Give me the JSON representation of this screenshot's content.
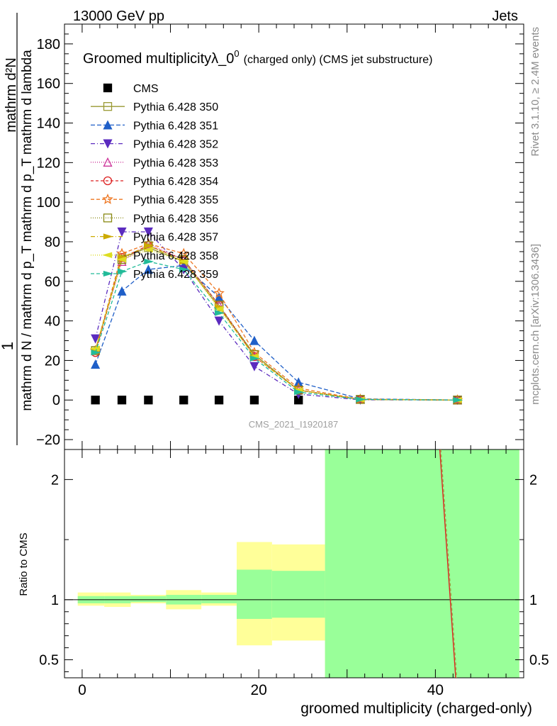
{
  "header": {
    "energy": "13000 GeV pp",
    "process": "Jets",
    "rivet": "Rivet 3.1.10, ≥ 2.4M events",
    "site": "mcplots.cern.ch [arXiv:1306.3436]",
    "analysis": "CMS_2021_I1920187"
  },
  "chart_data": [
    {
      "type": "line",
      "panel": "main",
      "title": "Groomed multiplicityλ_0",
      "title_sup": "0",
      "title_suffix": "(charged only) (CMS jet substructure)",
      "ylabel_num": "1",
      "ylabel_den": "mathrm d N / mathrm d p_T mathrm d p_T mathrm d lambda",
      "ylabel_top": "mathrm d²N",
      "xlim": [
        -2,
        50
      ],
      "ylim": [
        -25,
        190
      ],
      "yticks": [
        -20,
        0,
        20,
        40,
        60,
        80,
        100,
        120,
        140,
        160,
        180
      ],
      "x": [
        1.5,
        4.5,
        7.5,
        11.5,
        15.5,
        19.5,
        24.5,
        31.5,
        42.5
      ],
      "series": [
        {
          "name": "CMS",
          "color": "#000000",
          "marker": "square-filled",
          "dash": "none",
          "x": [
            1.5,
            4.5,
            7.5,
            11.5,
            15.5,
            19.5,
            24.5
          ],
          "values": [
            0,
            0,
            0,
            0,
            0,
            0,
            0
          ]
        },
        {
          "name": "Pythia 6.428 350",
          "color": "#999933",
          "marker": "square-open",
          "dash": "solid",
          "values": [
            25,
            72,
            77,
            70,
            47,
            23,
            5,
            0.3,
            0
          ]
        },
        {
          "name": "Pythia 6.428 351",
          "color": "#1f5fc8",
          "marker": "triangle-up-filled",
          "dash": "6,3",
          "values": [
            18,
            55,
            66,
            68,
            52,
            30,
            9,
            0.6,
            0
          ]
        },
        {
          "name": "Pythia 6.428 352",
          "color": "#5b2bbf",
          "marker": "triangle-down-filled",
          "dash": "6,3,1,3",
          "values": [
            31,
            85,
            85,
            66,
            40,
            17,
            3,
            0.1,
            0
          ]
        },
        {
          "name": "Pythia 6.428 353",
          "color": "#cc3399",
          "marker": "triangle-up-open",
          "dash": "1,2",
          "values": [
            25,
            70,
            79,
            71,
            48,
            22,
            5,
            0.3,
            0
          ]
        },
        {
          "name": "Pythia 6.428 354",
          "color": "#dd2222",
          "marker": "circle-open",
          "dash": "4,3",
          "values": [
            24,
            72,
            78,
            71,
            48,
            22,
            5,
            0.3,
            0
          ]
        },
        {
          "name": "Pythia 6.428 355",
          "color": "#ee7722",
          "marker": "star-open",
          "dash": "5,3",
          "values": [
            25,
            74,
            79,
            74,
            54,
            24,
            6,
            0.4,
            0
          ]
        },
        {
          "name": "Pythia 6.428 356",
          "color": "#888811",
          "marker": "square-open",
          "dash": "1,2",
          "values": [
            25,
            71,
            78,
            71,
            48,
            23,
            5,
            0.3,
            0
          ]
        },
        {
          "name": "Pythia 6.428 357",
          "color": "#ccaa00",
          "marker": "triangle-right-filled",
          "dash": "6,3,1,3",
          "values": [
            25,
            72,
            78,
            70,
            47,
            22,
            5,
            0.3,
            0
          ]
        },
        {
          "name": "Pythia 6.428 358",
          "color": "#dddd22",
          "marker": "triangle-left-filled",
          "dash": "1,2",
          "values": [
            26,
            71,
            76,
            70,
            46,
            22,
            5,
            0.3,
            0
          ]
        },
        {
          "name": "Pythia 6.428 359",
          "color": "#22bb99",
          "marker": "triangle-right-filled",
          "dash": "5,3",
          "values": [
            24,
            65,
            70,
            66,
            44,
            21,
            4,
            0.3,
            0
          ]
        }
      ]
    },
    {
      "type": "area",
      "panel": "ratio",
      "xlabel": "groomed multiplicity (charged-only)",
      "ylabel": "Ratio to CMS",
      "xlim": [
        -2,
        50
      ],
      "ylim": [
        0.35,
        2.25
      ],
      "yticks": [
        0.5,
        1,
        2
      ],
      "xticks": [
        0,
        20,
        40
      ],
      "band_inner_color": "#99ff99",
      "band_outer_color": "#ffff99",
      "bins": [
        {
          "lo": -0.5,
          "hi": 2.5,
          "inner": [
            0.97,
            1.03
          ],
          "outer": [
            0.95,
            1.06
          ]
        },
        {
          "lo": 2.5,
          "hi": 5.5,
          "inner": [
            0.97,
            1.03
          ],
          "outer": [
            0.94,
            1.06
          ]
        },
        {
          "lo": 5.5,
          "hi": 9.5,
          "inner": [
            0.98,
            1.03
          ],
          "outer": [
            0.97,
            1.04
          ]
        },
        {
          "lo": 9.5,
          "hi": 13.5,
          "inner": [
            0.96,
            1.04
          ],
          "outer": [
            0.92,
            1.08
          ]
        },
        {
          "lo": 13.5,
          "hi": 17.5,
          "inner": [
            0.97,
            1.04
          ],
          "outer": [
            0.95,
            1.06
          ]
        },
        {
          "lo": 17.5,
          "hi": 21.5,
          "inner": [
            0.84,
            1.25
          ],
          "outer": [
            0.62,
            1.48
          ]
        },
        {
          "lo": 21.5,
          "hi": 27.5,
          "inner": [
            0.85,
            1.24
          ],
          "outer": [
            0.66,
            1.46
          ]
        },
        {
          "lo": 27.5,
          "hi": 49.5,
          "inner": [
            0.35,
            2.25
          ],
          "outer": [
            0.35,
            2.25
          ]
        }
      ],
      "ratio_line": {
        "x": [
          40.5,
          42.3
        ],
        "values": [
          2.25,
          0.35
        ],
        "color": "#dd2222"
      }
    }
  ]
}
